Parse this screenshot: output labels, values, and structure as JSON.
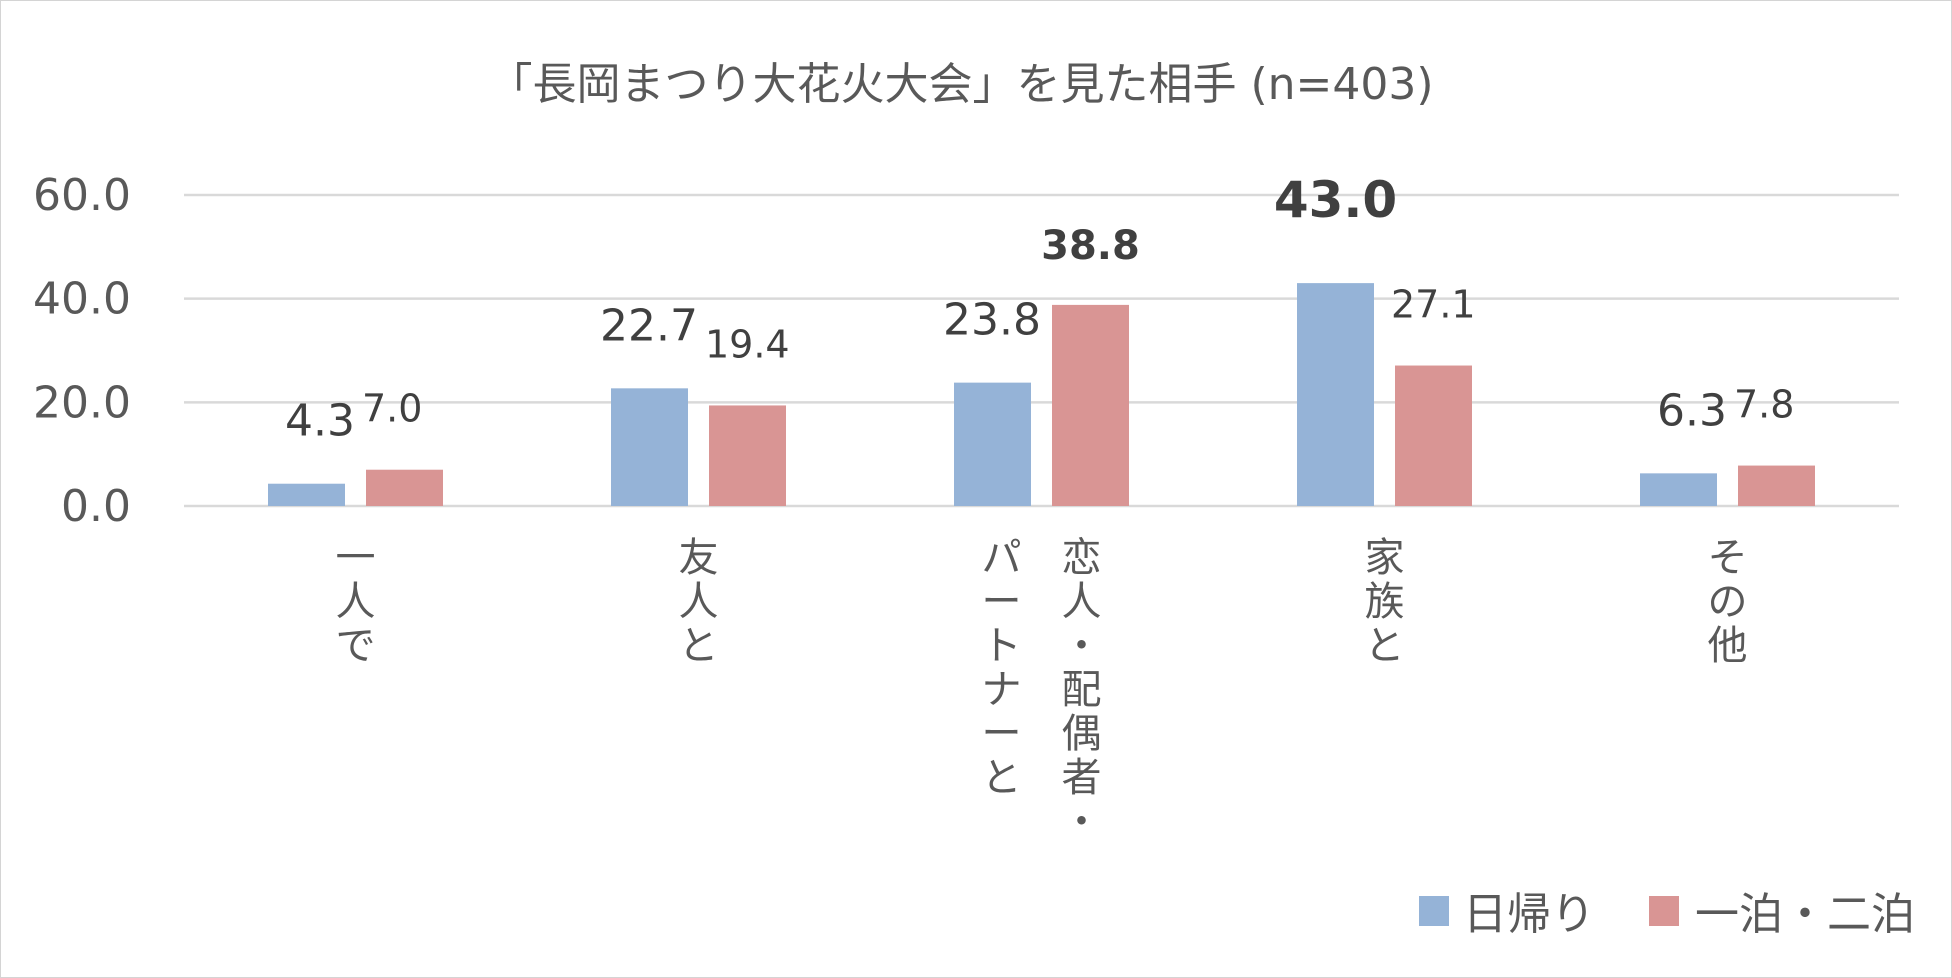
{
  "chart_data": {
    "type": "bar",
    "title": "「長岡まつり大花火大会」を見た相手 (n=403)",
    "xlabel": "",
    "ylabel": "",
    "categories": [
      [
        "一人で"
      ],
      [
        "友人と"
      ],
      [
        "恋人・配偶者・",
        "パートナーと"
      ],
      [
        "家族と"
      ],
      [
        "その他"
      ]
    ],
    "series": [
      {
        "name": "日帰り",
        "color": "#95b3d7",
        "values": [
          4.3,
          22.7,
          23.8,
          43.0,
          6.3
        ],
        "labels": [
          "4.3",
          "22.7",
          "23.8",
          "43.0",
          "6.3"
        ],
        "bold": [
          false,
          false,
          false,
          true,
          false
        ]
      },
      {
        "name": "一泊・二泊",
        "color": "#d99594",
        "values": [
          7.0,
          19.4,
          38.8,
          27.1,
          7.8
        ],
        "labels": [
          "7.0",
          "19.4",
          "38.8",
          "27.1",
          "7.8"
        ],
        "bold": [
          false,
          false,
          true,
          false,
          false
        ]
      }
    ],
    "ylim": [
      0,
      60
    ],
    "yticks": [
      "0.0",
      "20.0",
      "40.0",
      "60.0"
    ],
    "grid": true,
    "legend": "bottom-right"
  }
}
